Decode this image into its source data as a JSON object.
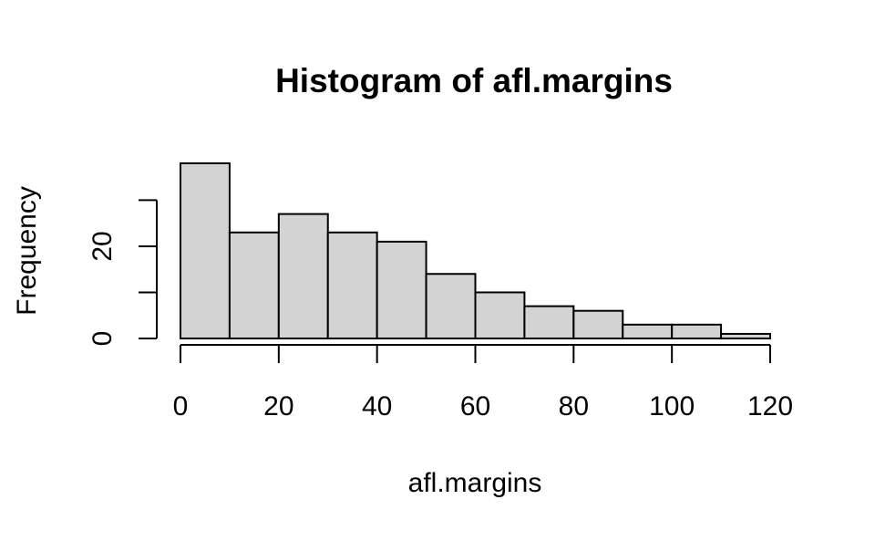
{
  "chart_data": {
    "type": "histogram",
    "title": "Histogram of afl.margins",
    "xlabel": "afl.margins",
    "ylabel": "Frequency",
    "bin_edges": [
      0,
      10,
      20,
      30,
      40,
      50,
      60,
      70,
      80,
      90,
      100,
      110,
      120
    ],
    "counts": [
      38,
      23,
      27,
      23,
      21,
      14,
      10,
      7,
      6,
      3,
      3,
      1
    ],
    "xlim": [
      0,
      120
    ],
    "ylim": [
      0,
      38
    ],
    "x_ticks": [
      0,
      20,
      40,
      60,
      80,
      100,
      120
    ],
    "y_ticks": [
      0,
      10,
      20,
      30
    ],
    "y_tick_labels": [
      "0",
      "",
      "20",
      ""
    ],
    "bar_fill": "#d3d3d3",
    "bar_stroke": "#000000",
    "grid": false
  }
}
